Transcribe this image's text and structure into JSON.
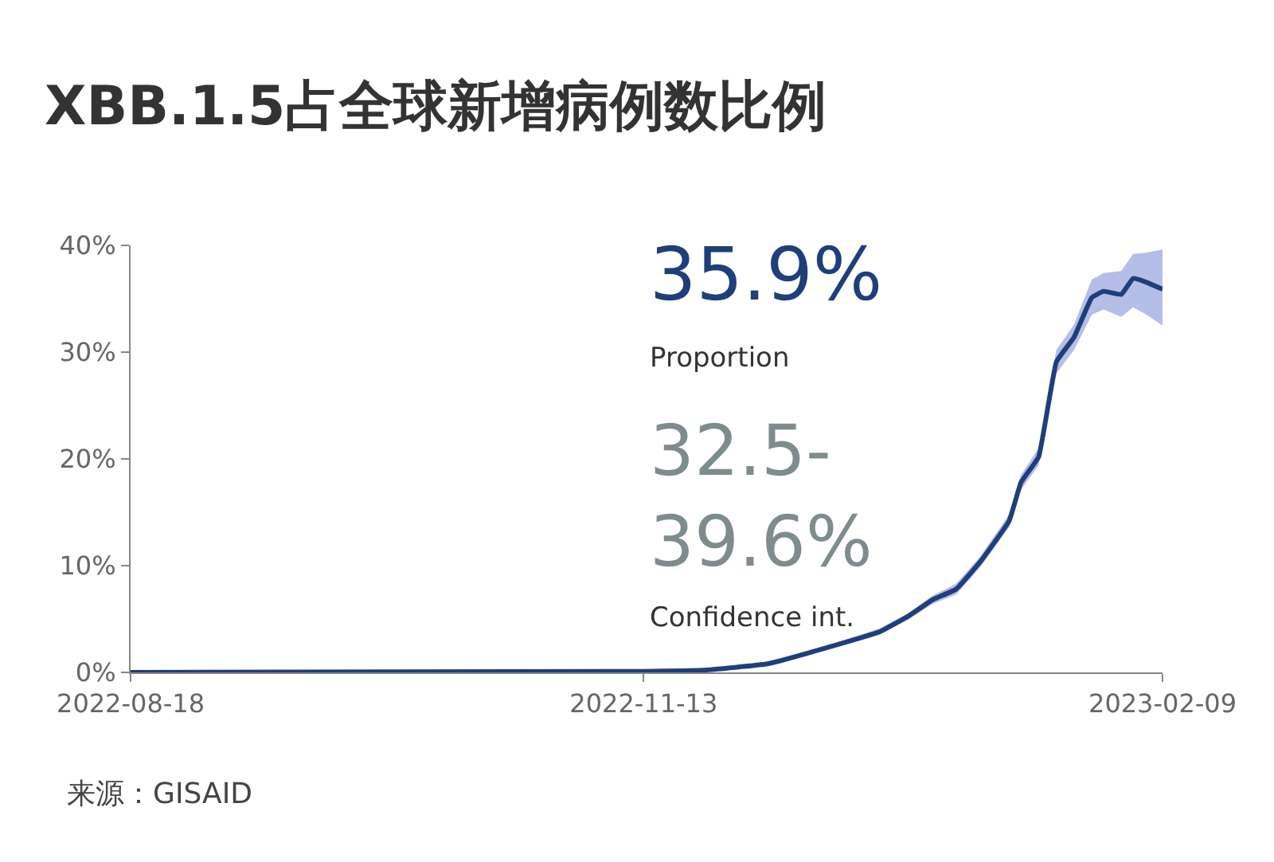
{
  "chart_data": {
    "type": "line",
    "title": "XBB.1.5占全球新增病例数比例",
    "x": [
      "2022-08-18",
      "2022-11-13",
      "2022-11-23",
      "2022-12-04",
      "2022-12-14",
      "2022-12-23",
      "2022-12-28",
      "2023-01-01",
      "2023-01-05",
      "2023-01-09",
      "2023-01-14",
      "2023-01-16",
      "2023-01-19",
      "2023-01-22",
      "2023-01-25",
      "2023-01-28",
      "2023-01-30",
      "2023-02-02",
      "2023-02-04",
      "2023-02-06",
      "2023-02-09"
    ],
    "series": [
      {
        "color": "#1f3f7a",
        "values": [
          0,
          0.1,
          0.2,
          0.8,
          2.3,
          3.8,
          5.3,
          6.8,
          7.8,
          10.3,
          14.2,
          17.8,
          20.2,
          29.1,
          31.4,
          35.1,
          35.7,
          35.4,
          36.9,
          36.6,
          35.9
        ],
        "lower": [
          0,
          0.1,
          0.2,
          0.7,
          2.1,
          3.5,
          5.0,
          6.4,
          7.3,
          9.8,
          13.6,
          17.1,
          19.4,
          28.0,
          30.2,
          33.5,
          34.0,
          33.3,
          34.2,
          33.6,
          32.5
        ],
        "upper": [
          0,
          0.1,
          0.2,
          0.9,
          2.5,
          4.1,
          5.6,
          7.2,
          8.3,
          10.8,
          14.8,
          18.5,
          21.0,
          30.2,
          32.6,
          36.8,
          37.4,
          37.6,
          39.2,
          39.3,
          39.6
        ]
      }
    ],
    "xlim": [
      "2022-08-18",
      "2023-02-09"
    ],
    "xticks": [
      {
        "value": "2022-08-18",
        "label": "2022-08-18"
      },
      {
        "value": "2022-11-13",
        "label": "2022-11-13"
      },
      {
        "value": "2023-02-09",
        "label": "2023-02-09"
      }
    ],
    "ylim": [
      0,
      40
    ],
    "yticks": [
      {
        "value": 0,
        "label": "0%"
      },
      {
        "value": 10,
        "label": "10%"
      },
      {
        "value": 20,
        "label": "20%"
      },
      {
        "value": 30,
        "label": "30%"
      },
      {
        "value": 40,
        "label": "40%"
      }
    ],
    "annotations": [
      "35.9%",
      "Proportion",
      "32.5-\n39.6%",
      "Confidence int.",
      "来源：GISAID"
    ]
  }
}
